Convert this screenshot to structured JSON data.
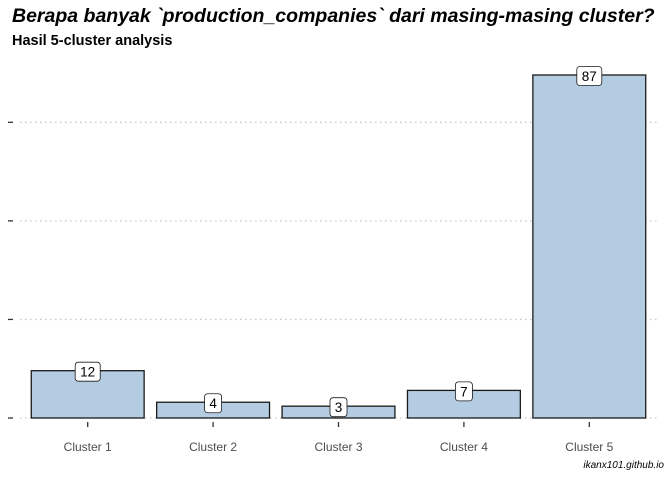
{
  "title": "Berapa banyak `production_companies` dari masing-masing cluster?",
  "subtitle": "Hasil 5-cluster analysis",
  "caption": "ikanx101.github.io",
  "colors": {
    "bar_fill": "#b4cce1",
    "bar_stroke": "#1a1a1a",
    "grid": "#c8c8c8",
    "axis_tick": "#333333"
  },
  "chart_data": {
    "type": "bar",
    "categories": [
      "Cluster 1",
      "Cluster 2",
      "Cluster 3",
      "Cluster 4",
      "Cluster 5"
    ],
    "values": [
      12,
      4,
      3,
      7,
      87
    ],
    "title": "Berapa banyak `production_companies` dari masing-masing cluster?",
    "subtitle": "Hasil 5-cluster analysis",
    "xlabel": "",
    "ylabel": "",
    "ylim": [
      0,
      91.35
    ],
    "y_gridlines": [
      0,
      25,
      50,
      75
    ],
    "y_tick_labels_shown": false,
    "grid": "horizontal dotted",
    "legend": "none",
    "data_labels": true
  }
}
